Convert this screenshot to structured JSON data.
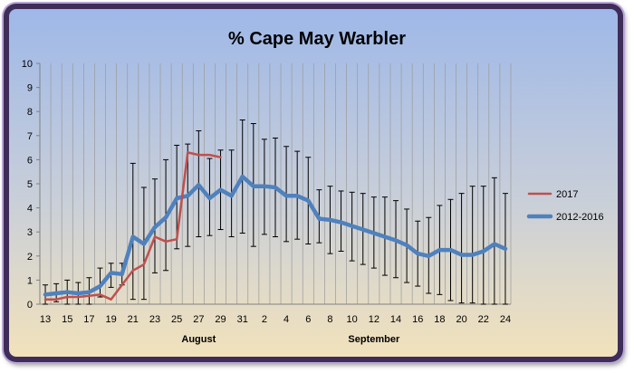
{
  "colors": {
    "series_2017": "#c0504d",
    "series_avg": "#4f81bd",
    "frame": "#3f2d59",
    "plot_top": "#9eb8e8",
    "plot_bottom": "#f2e2bc"
  },
  "chart_data": {
    "type": "line",
    "title": "% Cape May Warbler",
    "xlabel": "",
    "ylabel": "",
    "ylim": [
      0,
      10
    ],
    "yticks": [
      0,
      1,
      2,
      3,
      4,
      5,
      6,
      7,
      8,
      9,
      10
    ],
    "grid": "vertical",
    "legend_position": "right",
    "x": [
      "13",
      "14",
      "15",
      "16",
      "17",
      "18",
      "19",
      "20",
      "21",
      "22",
      "23",
      "24",
      "25",
      "26",
      "27",
      "28",
      "29",
      "30",
      "31",
      "1",
      "2",
      "3",
      "4",
      "5",
      "6",
      "7",
      "8",
      "9",
      "10",
      "11",
      "12",
      "13",
      "14",
      "15",
      "16",
      "17",
      "18",
      "19",
      "20",
      "21",
      "22",
      "23",
      "24"
    ],
    "x_tick_labels": [
      "13",
      "",
      "15",
      "",
      "17",
      "",
      "19",
      "",
      "21",
      "",
      "23",
      "",
      "25",
      "",
      "27",
      "",
      "29",
      "",
      "31",
      "",
      "2",
      "",
      "4",
      "",
      "6",
      "",
      "8",
      "",
      "10",
      "",
      "12",
      "",
      "14",
      "",
      "16",
      "",
      "18",
      "",
      "20",
      "",
      "22",
      "",
      "24"
    ],
    "month_labels": [
      {
        "label": "August",
        "at_index": 14
      },
      {
        "label": "September",
        "at_index": 30
      }
    ],
    "series": [
      {
        "name": "2017",
        "values": [
          0.2,
          0.2,
          0.3,
          0.3,
          0.35,
          0.4,
          0.2,
          0.8,
          1.4,
          1.65,
          2.8,
          2.6,
          2.7,
          6.3,
          6.2,
          6.2,
          6.1,
          null,
          null,
          null,
          null,
          null,
          null,
          null,
          null,
          null,
          null,
          null,
          null,
          null,
          null,
          null,
          null,
          null,
          null,
          null,
          null,
          null,
          null,
          null,
          null,
          null,
          null
        ]
      },
      {
        "name": "2012-2016",
        "values": [
          0.4,
          0.45,
          0.5,
          0.45,
          0.5,
          0.75,
          1.3,
          1.25,
          2.8,
          2.5,
          3.2,
          3.6,
          4.4,
          4.5,
          4.95,
          4.4,
          4.75,
          4.5,
          5.3,
          4.9,
          4.9,
          4.85,
          4.5,
          4.5,
          4.3,
          3.55,
          3.5,
          3.4,
          3.25,
          3.1,
          2.95,
          2.8,
          2.65,
          2.45,
          2.1,
          2.0,
          2.25,
          2.25,
          2.05,
          2.05,
          2.2,
          2.5,
          2.3
        ],
        "error_bars": [
          [
            0.0,
            0.8
          ],
          [
            0.1,
            0.85
          ],
          [
            0.0,
            1.0
          ],
          [
            0.0,
            0.9
          ],
          [
            0.0,
            1.1
          ],
          [
            0.3,
            1.5
          ],
          [
            0.7,
            1.7
          ],
          [
            0.8,
            1.7
          ],
          [
            0.2,
            5.85
          ],
          [
            0.2,
            4.85
          ],
          [
            1.3,
            5.2
          ],
          [
            1.4,
            6.0
          ],
          [
            2.3,
            6.6
          ],
          [
            2.4,
            6.65
          ],
          [
            2.8,
            7.2
          ],
          [
            2.85,
            6.05
          ],
          [
            3.1,
            6.4
          ],
          [
            2.8,
            6.4
          ],
          [
            2.95,
            7.65
          ],
          [
            2.4,
            7.5
          ],
          [
            2.9,
            6.85
          ],
          [
            2.8,
            6.9
          ],
          [
            2.6,
            6.55
          ],
          [
            2.7,
            6.35
          ],
          [
            2.5,
            6.1
          ],
          [
            2.55,
            4.75
          ],
          [
            2.1,
            4.9
          ],
          [
            2.2,
            4.7
          ],
          [
            1.8,
            4.65
          ],
          [
            1.65,
            4.6
          ],
          [
            1.5,
            4.45
          ],
          [
            1.2,
            4.45
          ],
          [
            1.1,
            4.3
          ],
          [
            0.9,
            3.95
          ],
          [
            0.75,
            3.45
          ],
          [
            0.45,
            3.6
          ],
          [
            0.4,
            4.1
          ],
          [
            0.15,
            4.35
          ],
          [
            0.05,
            4.6
          ],
          [
            0.05,
            4.9
          ],
          [
            0.0,
            4.9
          ],
          [
            0.0,
            5.25
          ],
          [
            0.0,
            4.6
          ]
        ]
      }
    ]
  }
}
